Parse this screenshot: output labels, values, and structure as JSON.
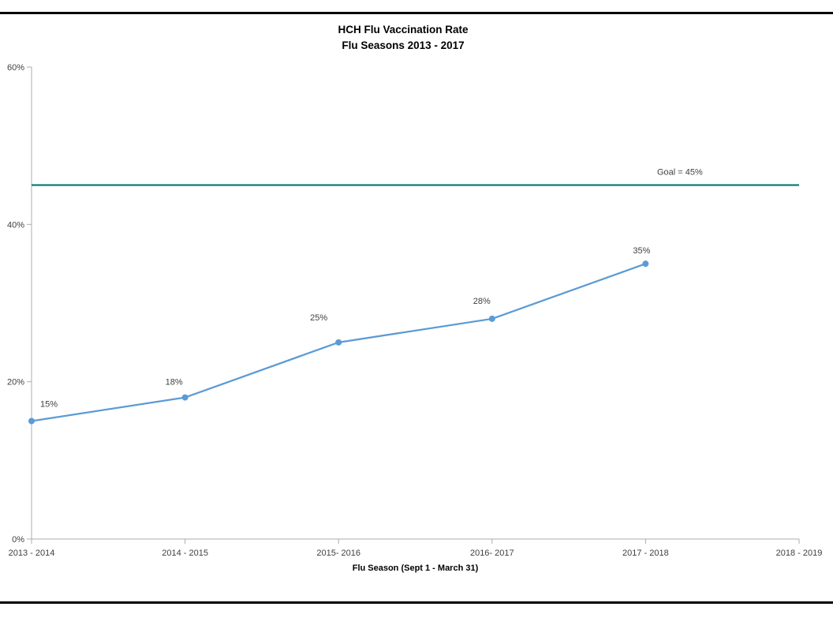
{
  "chart_data": {
    "type": "line",
    "title": "HCH Flu Vaccination Rate",
    "subtitle": "Flu Seasons 2013 - 2017",
    "xlabel": "Flu Season (Sept 1 - March 31)",
    "ylabel": "",
    "categories": [
      "2013 - 2014",
      "2014 - 2015",
      "2015- 2016",
      "2016- 2017",
      "2017 - 2018",
      "2018 - 2019"
    ],
    "series": [
      {
        "values": [
          15,
          18,
          25,
          28,
          35,
          null
        ],
        "data_labels": [
          "15%",
          "18%",
          "25%",
          "28%",
          "35%"
        ],
        "color": "#5B9BD5",
        "marker": "circle"
      }
    ],
    "goal_line": {
      "value": 45,
      "label": "Goal = 45%",
      "color": "#0E7C7E"
    },
    "ylim": [
      0,
      60
    ],
    "ytick_values": [
      0,
      20,
      40,
      60
    ],
    "ytick_labels": [
      "0%",
      "20%",
      "40%",
      "60%"
    ],
    "grid": false,
    "legend": "none",
    "axis_color": "#ACACAC",
    "text_color": "#3F3F3F",
    "title_color": "#000000",
    "frame_rule_color": "#000000"
  }
}
